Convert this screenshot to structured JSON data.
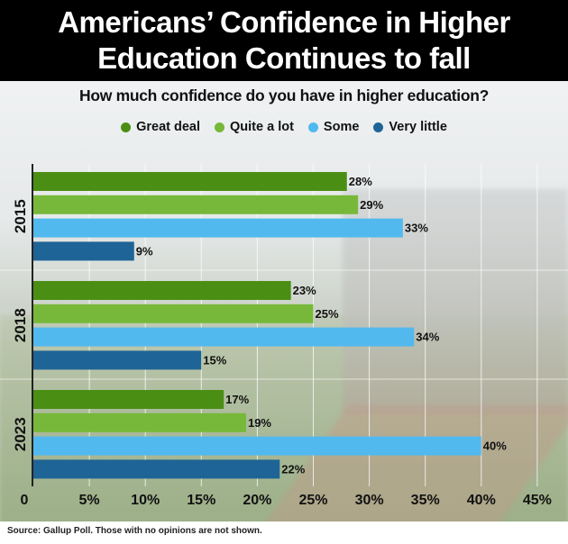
{
  "title_lines": [
    "Americans’ Confidence in Higher",
    "Education Continues to fall"
  ],
  "subtitle": "How much confidence do you have in higher education?",
  "source": "Source: Gallup Poll. Those with no opinions are not shown.",
  "colors": {
    "great_deal": "#4a8f14",
    "quite_a_lot": "#77b83a",
    "some": "#52b9ef",
    "very_little": "#1f6496"
  },
  "chart_data": {
    "type": "bar",
    "orientation": "horizontal",
    "title": "How much confidence do you have in higher education?",
    "categories": [
      "2015",
      "2018",
      "2023"
    ],
    "series": [
      {
        "name": "Great deal",
        "values": [
          28,
          23,
          17
        ],
        "value_labels": [
          "28%",
          "23%",
          "17%"
        ]
      },
      {
        "name": "Quite a lot",
        "values": [
          29,
          25,
          19
        ],
        "value_labels": [
          "29%",
          "25%",
          "19%"
        ]
      },
      {
        "name": "Some",
        "values": [
          33,
          34,
          40
        ],
        "value_labels": [
          "33%",
          "34%",
          "40%"
        ]
      },
      {
        "name": "Very little",
        "values": [
          9,
          15,
          22
        ],
        "value_labels": [
          "9%",
          "15%",
          "22%"
        ]
      }
    ],
    "xlim": [
      0,
      47
    ],
    "x_ticks": [
      0,
      5,
      10,
      15,
      20,
      25,
      30,
      35,
      40,
      45
    ],
    "x_tick_labels": [
      "0",
      "5%",
      "10%",
      "15%",
      "20%",
      "25%",
      "30%",
      "35%",
      "40%",
      "45%"
    ],
    "grid": true,
    "legend_position": "top"
  }
}
